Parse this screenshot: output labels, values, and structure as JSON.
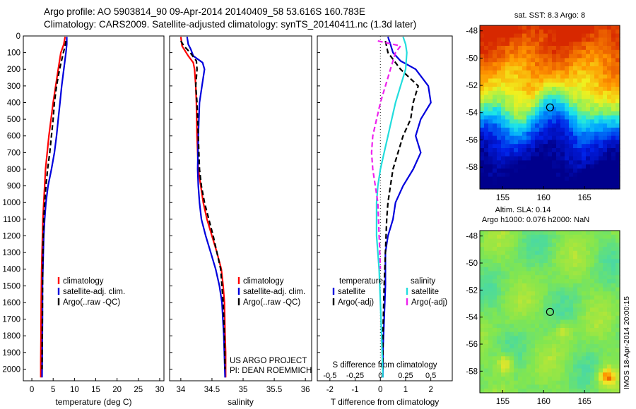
{
  "header": {
    "title_line1": "Argo profile: AO 5903814_90 09-Apr-2014 20140409_58 53.616S 160.783E",
    "title_line2": "Climatology: CARS2009. Satellite-adjusted climatology: synTS_20140411.nc (1.3d later)"
  },
  "colors": {
    "climatology": "#ff0000",
    "satellite": "#0000dd",
    "argo": "#000000",
    "sal_satellite": "#22dddd",
    "sal_argo": "#ee22ee"
  },
  "depth_axis": {
    "ticks": [
      0,
      100,
      200,
      300,
      400,
      500,
      600,
      700,
      800,
      900,
      1000,
      1100,
      1200,
      1300,
      1400,
      1500,
      1600,
      1700,
      1800,
      1900,
      2000
    ],
    "ylim": [
      0,
      2070
    ]
  },
  "chart_data": [
    {
      "type": "line",
      "panel": "temperature",
      "xlabel": "temperature (deg C)",
      "xlim": [
        -2,
        31
      ],
      "xticks": [
        "0",
        "5",
        "10",
        "15",
        "20",
        "25",
        "30"
      ],
      "xtick_values": [
        0,
        5,
        10,
        15,
        20,
        25,
        30
      ],
      "legend": [
        "climatology",
        "satellite-adj. clim.",
        "Argo(..raw -QC)"
      ],
      "series": [
        {
          "name": "climatology",
          "color": "#ff0000",
          "dash": false,
          "x": [
            7.8,
            7.5,
            6.8,
            6.2,
            5.6,
            5.0,
            4.5,
            4.0,
            3.6,
            3.2,
            3.0,
            2.8,
            2.6,
            2.5,
            2.4,
            2.3,
            2.25,
            2.2,
            2.15,
            2.1,
            2.1
          ],
          "y": [
            5,
            50,
            100,
            200,
            300,
            400,
            500,
            600,
            700,
            800,
            900,
            1000,
            1100,
            1200,
            1300,
            1400,
            1500,
            1600,
            1800,
            1950,
            2050
          ]
        },
        {
          "name": "satellite-adj. clim.",
          "color": "#0000dd",
          "dash": false,
          "x": [
            8.2,
            8.2,
            8.0,
            7.5,
            7.0,
            6.6,
            6.2,
            5.8,
            5.3,
            4.6,
            3.8,
            3.3,
            3.0,
            2.8,
            2.7,
            2.6,
            2.5,
            2.5,
            2.45,
            2.4
          ],
          "y": [
            5,
            50,
            100,
            200,
            300,
            400,
            500,
            600,
            700,
            800,
            900,
            1000,
            1100,
            1200,
            1300,
            1400,
            1500,
            1700,
            1900,
            2050
          ]
        },
        {
          "name": "Argo(..raw -QC)",
          "color": "#000000",
          "dash": true,
          "x": [
            8.0,
            7.8,
            7.4,
            6.5,
            5.8,
            5.3,
            5.0,
            4.6,
            4.2,
            3.7,
            3.3,
            3.0,
            2.8,
            2.7,
            2.6,
            2.55,
            2.5,
            2.45,
            2.4
          ],
          "y": [
            30,
            60,
            100,
            200,
            300,
            400,
            500,
            600,
            700,
            800,
            900,
            1000,
            1100,
            1200,
            1300,
            1400,
            1600,
            1800,
            2000
          ]
        }
      ]
    },
    {
      "type": "line",
      "panel": "salinity",
      "xlabel": "salinity",
      "xlim": [
        33.82,
        36.1
      ],
      "xticks": [
        "34",
        "34.5",
        "35",
        "35.5",
        "36"
      ],
      "xtick_values": [
        34,
        34.5,
        35,
        35.5,
        36
      ],
      "legend": [
        "climatology",
        "satellite-adj. clim.",
        "Argo(..raw -QC)"
      ],
      "annotation": [
        "US ARGO PROJECT",
        "PI: DEAN ROEMMICH"
      ],
      "series": [
        {
          "name": "climatology",
          "color": "#ff0000",
          "dash": false,
          "x": [
            34.0,
            34.02,
            34.12,
            34.2,
            34.22,
            34.24,
            34.25,
            34.26,
            34.28,
            34.32,
            34.36,
            34.42,
            34.5,
            34.58,
            34.65,
            34.68,
            34.7,
            34.71,
            34.72,
            34.72
          ],
          "y": [
            5,
            60,
            120,
            160,
            200,
            300,
            400,
            600,
            800,
            900,
            1000,
            1100,
            1200,
            1300,
            1400,
            1500,
            1600,
            1800,
            1900,
            2050
          ]
        },
        {
          "name": "satellite-adj. clim.",
          "color": "#0000dd",
          "dash": false,
          "x": [
            34.1,
            34.12,
            34.16,
            34.2,
            34.35,
            34.38,
            34.34,
            34.3,
            34.28,
            34.27,
            34.28,
            34.3,
            34.33,
            34.4,
            34.48,
            34.56,
            34.62,
            34.66,
            34.69,
            34.71
          ],
          "y": [
            5,
            50,
            80,
            120,
            160,
            200,
            300,
            400,
            600,
            800,
            900,
            1000,
            1100,
            1200,
            1300,
            1400,
            1500,
            1600,
            1800,
            2050
          ]
        },
        {
          "name": "Argo(..raw -QC)",
          "color": "#000000",
          "dash": true,
          "x": [
            34.0,
            34.05,
            34.1,
            34.15,
            34.25,
            34.26,
            34.24,
            34.26,
            34.28,
            34.3,
            34.33,
            34.38,
            34.45,
            34.52,
            34.58,
            34.64,
            34.68,
            34.7,
            34.71
          ],
          "y": [
            30,
            60,
            80,
            100,
            150,
            200,
            300,
            400,
            600,
            800,
            900,
            1000,
            1100,
            1200,
            1300,
            1400,
            1600,
            1800,
            2000
          ]
        }
      ]
    },
    {
      "type": "line",
      "panel": "difference",
      "xlabel": "T difference from climatology",
      "xlabel_top": "S difference from climatology",
      "xlim": [
        -2.5,
        2.85
      ],
      "xticks": [
        "-2",
        "-1",
        "0",
        "1",
        "2"
      ],
      "xtick_values": [
        -2,
        -1,
        0,
        1,
        2
      ],
      "top_xticks": [
        "-0.5",
        "-0.25",
        "0",
        "0.25",
        "0.5"
      ],
      "top_xtick_positions": [
        -2,
        -1,
        0,
        1,
        2
      ],
      "legend_temperature": {
        "header": "temperature",
        "items": [
          "satellite",
          "Argo(-adj)"
        ]
      },
      "legend_salinity": {
        "header": "salinity",
        "items": [
          "satellite",
          "Argo(-adj)"
        ]
      },
      "series": [
        {
          "name": "satellite",
          "color": "#0000dd",
          "dash": false,
          "x": [
            0.3,
            0.4,
            0.5,
            0.8,
            1.4,
            1.9,
            2.0,
            1.6,
            1.4,
            1.6,
            1.3,
            0.9,
            0.6,
            0.5,
            0.3,
            0.2,
            0.2,
            0.15,
            0.1,
            0.1
          ],
          "y": [
            5,
            50,
            100,
            150,
            200,
            300,
            400,
            500,
            600,
            700,
            800,
            900,
            1000,
            1100,
            1200,
            1300,
            1500,
            1700,
            1900,
            2050
          ]
        },
        {
          "name": "Argo(-adj)",
          "color": "#000000",
          "dash": true,
          "x": [
            0.2,
            0.3,
            0.8,
            1.5,
            1.3,
            1.2,
            0.9,
            0.7,
            0.5,
            0.4,
            0.3,
            0.25,
            0.2,
            0.15,
            0.1,
            0.1
          ],
          "y": [
            30,
            100,
            200,
            300,
            400,
            500,
            600,
            700,
            800,
            900,
            1000,
            1100,
            1300,
            1500,
            1800,
            2000
          ]
        },
        {
          "name": "satellite",
          "color": "#22dddd",
          "dash": false,
          "x": [
            0.9,
            1.0,
            1.05,
            1.0,
            0.8,
            0.6,
            0.45,
            0.3,
            0.15,
            0.0,
            -0.1,
            -0.15,
            -0.15,
            -0.05,
            0.0,
            0.05,
            0.1
          ],
          "y": [
            5,
            50,
            100,
            200,
            300,
            400,
            500,
            600,
            700,
            800,
            900,
            1000,
            1200,
            1400,
            1600,
            1800,
            2050
          ]
        },
        {
          "name": "Argo(-adj)",
          "color": "#ee22ee",
          "dash": true,
          "x": [
            -0.1,
            0.8,
            0.6,
            0.4,
            0.2,
            0.0,
            -0.15,
            -0.3,
            -0.35,
            -0.3,
            -0.2,
            -0.1,
            -0.05,
            0.0
          ],
          "y": [
            30,
            60,
            100,
            200,
            300,
            400,
            500,
            600,
            700,
            800,
            900,
            1000,
            1200,
            1400
          ]
        }
      ]
    },
    {
      "type": "heatmap",
      "panel": "sat-sst-map",
      "title": "sat. SST: 8.3 Argo: 8",
      "xticks": [
        "155",
        "160",
        "165"
      ],
      "xtick_values": [
        155,
        160,
        165
      ],
      "yticks": [
        "-48",
        "-50",
        "-52",
        "-54",
        "-56",
        "-58"
      ],
      "ytick_values": [
        -48,
        -50,
        -52,
        -54,
        -56,
        -58
      ],
      "xlim": [
        152.2,
        169.3
      ],
      "ylim": [
        -59.6,
        -47.6
      ],
      "marker": {
        "lon": 160.783,
        "lat": -53.616
      }
    },
    {
      "type": "heatmap",
      "panel": "altim-sla-map",
      "title_line1": "Altim. SLA: 0.14",
      "title_line2": "Argo h1000: 0.076 h2000: NaN",
      "side_label": "IMOS 18-Apr-2014 20:00:15",
      "xticks": [
        "155",
        "160",
        "165"
      ],
      "xtick_values": [
        155,
        160,
        165
      ],
      "yticks": [
        "-48",
        "-50",
        "-52",
        "-54",
        "-56",
        "-58"
      ],
      "ytick_values": [
        -48,
        -50,
        -52,
        -54,
        -56,
        -58
      ],
      "xlim": [
        152.2,
        169.3
      ],
      "ylim": [
        -59.6,
        -47.6
      ],
      "marker": {
        "lon": 160.783,
        "lat": -53.616
      }
    }
  ]
}
